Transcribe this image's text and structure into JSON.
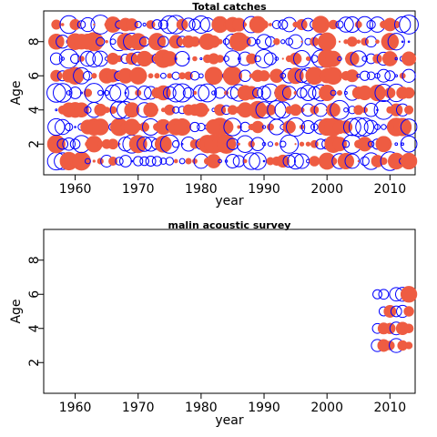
{
  "colors": {
    "positive": "#EE5C42",
    "negative": "#0000FF"
  },
  "chart_data": [
    {
      "type": "scatter",
      "encoding": "bubble residuals: filled red = positive, open blue = negative, size = magnitude",
      "title": "Total catches",
      "xlabel": "year",
      "ylabel": "Age",
      "xlim": [
        1955,
        2014
      ],
      "ylim": [
        0.2,
        9.8
      ],
      "xticks": [
        1960,
        1970,
        1980,
        1990,
        2000,
        2010
      ],
      "yticks": [
        2,
        4,
        6,
        8
      ],
      "x": [
        1957,
        2013
      ],
      "y": [
        1,
        9
      ],
      "residual_seed": 7
    },
    {
      "type": "scatter",
      "encoding": "bubble residuals: filled red = positive, open blue = negative, size = magnitude",
      "title": "malin acoustic survey",
      "xlabel": "year",
      "ylabel": "Age",
      "xlim": [
        1955,
        2014
      ],
      "ylim": [
        0.2,
        9.8
      ],
      "xticks": [
        1960,
        1970,
        1980,
        1990,
        2000,
        2010
      ],
      "yticks": [
        2,
        4,
        6,
        8
      ],
      "points": [
        {
          "year": 2008,
          "age": 3,
          "r": -0.9
        },
        {
          "year": 2009,
          "age": 3,
          "r": 0.9
        },
        {
          "year": 2010,
          "age": 3,
          "r": 0.5
        },
        {
          "year": 2011,
          "age": 3,
          "r": -1.2
        },
        {
          "year": 2012,
          "age": 3,
          "r": 0.6
        },
        {
          "year": 2013,
          "age": 3,
          "r": 0.3
        },
        {
          "year": 2008,
          "age": 4,
          "r": -0.6
        },
        {
          "year": 2009,
          "age": 4,
          "r": 0.8
        },
        {
          "year": 2010,
          "age": 4,
          "r": 0.7
        },
        {
          "year": 2011,
          "age": 4,
          "r": -1.0
        },
        {
          "year": 2012,
          "age": 4,
          "r": 1.0
        },
        {
          "year": 2013,
          "age": 4,
          "r": 0.5
        },
        {
          "year": 2009,
          "age": 5,
          "r": -0.5
        },
        {
          "year": 2010,
          "age": 5,
          "r": 0.9
        },
        {
          "year": 2011,
          "age": 5,
          "r": -0.7
        },
        {
          "year": 2012,
          "age": 5,
          "r": -0.9
        },
        {
          "year": 2013,
          "age": 5,
          "r": 0.6
        },
        {
          "year": 2008,
          "age": 6,
          "r": -0.5
        },
        {
          "year": 2009,
          "age": 6,
          "r": -0.6
        },
        {
          "year": 2011,
          "age": 6,
          "r": -1.1
        },
        {
          "year": 2012,
          "age": 6,
          "r": -1.2
        },
        {
          "year": 2013,
          "age": 6,
          "r": 1.6
        }
      ]
    }
  ]
}
